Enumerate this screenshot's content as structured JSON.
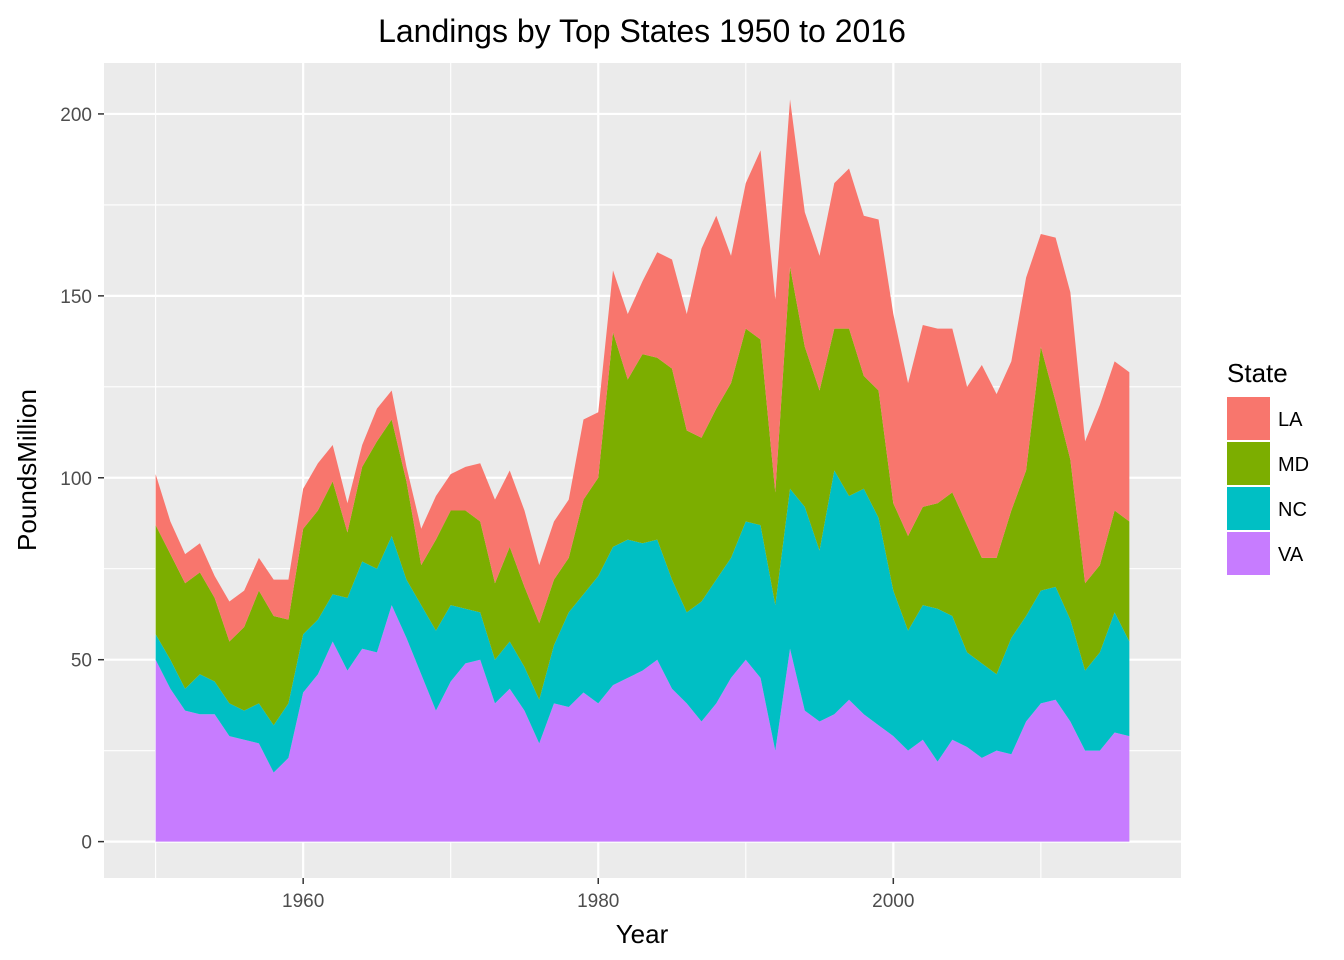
{
  "chart_data": {
    "type": "area",
    "stacked": true,
    "title": "Landings by Top States 1950 to 2016",
    "xlabel": "Year",
    "ylabel": "PoundsMillion",
    "xlim": [
      1946.5,
      2019.5
    ],
    "ylim": [
      -10,
      214
    ],
    "x_ticks": [
      1960,
      1980,
      2000
    ],
    "y_ticks": [
      0,
      50,
      100,
      150,
      200
    ],
    "legend": {
      "title": "State",
      "position": "right"
    },
    "x": [
      1950,
      1951,
      1952,
      1953,
      1954,
      1955,
      1956,
      1957,
      1958,
      1959,
      1960,
      1961,
      1962,
      1963,
      1964,
      1965,
      1966,
      1967,
      1968,
      1969,
      1970,
      1971,
      1972,
      1973,
      1974,
      1975,
      1976,
      1977,
      1978,
      1979,
      1980,
      1981,
      1982,
      1983,
      1984,
      1985,
      1986,
      1987,
      1988,
      1989,
      1990,
      1991,
      1992,
      1993,
      1994,
      1995,
      1996,
      1997,
      1998,
      1999,
      2000,
      2001,
      2002,
      2003,
      2004,
      2005,
      2006,
      2007,
      2008,
      2009,
      2010,
      2011,
      2012,
      2013,
      2014,
      2015,
      2016
    ],
    "series": [
      {
        "name": "VA",
        "color": "#C77CFF",
        "values": [
          50,
          42,
          36,
          35,
          35,
          29,
          28,
          27,
          19,
          23,
          41,
          46,
          55,
          47,
          53,
          52,
          65,
          56,
          46,
          36,
          44,
          49,
          50,
          38,
          42,
          36,
          27,
          38,
          37,
          41,
          38,
          43,
          45,
          47,
          50,
          42,
          38,
          33,
          38,
          45,
          50,
          45,
          25,
          53,
          36,
          33,
          35,
          39,
          35,
          32,
          29,
          25,
          28,
          22,
          28,
          26,
          23,
          25,
          24,
          33,
          38,
          39,
          33,
          25,
          25,
          30,
          29
        ]
      },
      {
        "name": "NC",
        "color": "#00BFC4",
        "values": [
          7,
          8,
          6,
          11,
          9,
          9,
          8,
          11,
          13,
          15,
          16,
          15,
          13,
          20,
          24,
          23,
          19,
          16,
          19,
          22,
          21,
          15,
          13,
          12,
          13,
          12,
          12,
          16,
          26,
          27,
          35,
          38,
          38,
          35,
          33,
          30,
          25,
          33,
          34,
          33,
          38,
          42,
          40,
          44,
          56,
          47,
          67,
          56,
          62,
          57,
          40,
          33,
          37,
          42,
          34,
          26,
          26,
          21,
          32,
          29,
          31,
          31,
          28,
          22,
          27,
          33,
          26
        ]
      },
      {
        "name": "MD",
        "color": "#7CAE00",
        "values": [
          30,
          29,
          29,
          28,
          23,
          17,
          23,
          31,
          30,
          23,
          29,
          30,
          31,
          18,
          26,
          35,
          32,
          27,
          11,
          25,
          26,
          27,
          25,
          21,
          26,
          22,
          21,
          18,
          15,
          26,
          27,
          59,
          44,
          52,
          50,
          58,
          50,
          45,
          47,
          48,
          53,
          51,
          31,
          61,
          44,
          44,
          39,
          46,
          31,
          35,
          24,
          26,
          27,
          29,
          34,
          35,
          29,
          32,
          35,
          40,
          67,
          51,
          44,
          24,
          24,
          28,
          33
        ]
      },
      {
        "name": "LA",
        "color": "#F8766D",
        "values": [
          14,
          9,
          8,
          8,
          6,
          11,
          10,
          9,
          10,
          11,
          11,
          13,
          10,
          8,
          6,
          9,
          8,
          4,
          10,
          12,
          10,
          12,
          16,
          23,
          21,
          21,
          16,
          16,
          16,
          22,
          18,
          17,
          18,
          20,
          29,
          30,
          32,
          52,
          53,
          35,
          40,
          52,
          53,
          46,
          37,
          37,
          40,
          44,
          44,
          47,
          52,
          42,
          50,
          48,
          45,
          38,
          53,
          45,
          41,
          53,
          31,
          45,
          46,
          39,
          44,
          41,
          41
        ]
      }
    ]
  }
}
